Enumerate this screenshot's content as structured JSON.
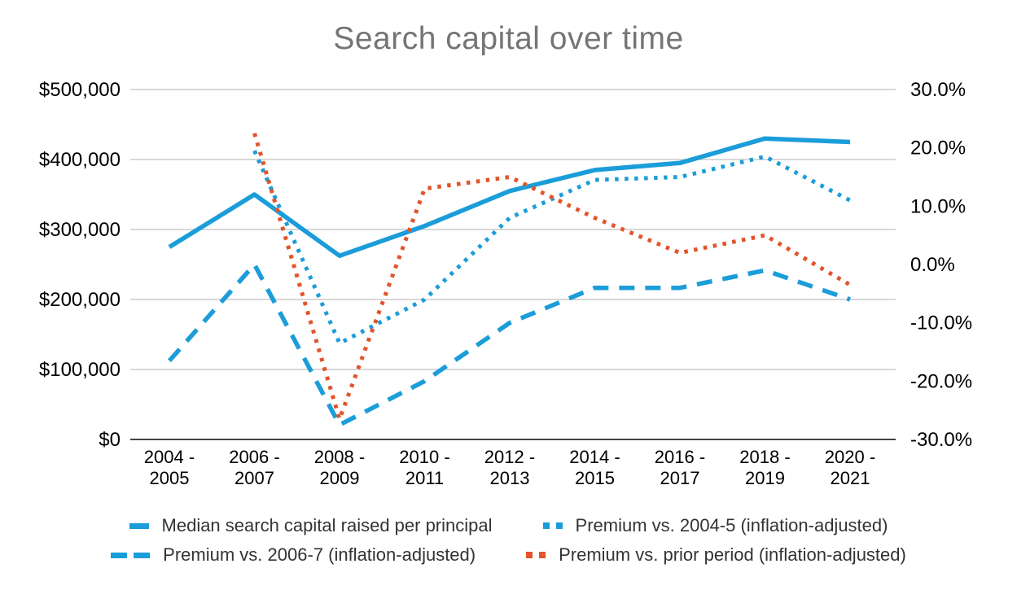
{
  "title": "Search capital over time",
  "chart_data": {
    "type": "line",
    "categories": [
      "2004 - 2005",
      "2006 - 2007",
      "2008 - 2009",
      "2010 - 2011",
      "2012 - 2013",
      "2014 - 2015",
      "2016 - 2017",
      "2018 - 2019",
      "2020 - 2021"
    ],
    "left_axis": {
      "unit": "USD",
      "min": 0,
      "max": 500000,
      "ticks": [
        "$500,000",
        "$400,000",
        "$300,000",
        "$200,000",
        "$100,000",
        "$0"
      ]
    },
    "right_axis": {
      "unit": "percent",
      "min": -30,
      "max": 30,
      "ticks": [
        "30.0%",
        "20.0%",
        "10.0%",
        "0.0%",
        "-10.0%",
        "-20.0%",
        "-30.0%"
      ]
    },
    "grid": true,
    "legend_position": "bottom",
    "series": [
      {
        "name": "Median search capital raised per principal",
        "axis": "left",
        "line_style": "solid",
        "color": "#1B9DD9",
        "values": [
          275000,
          350000,
          262500,
          305000,
          355000,
          385000,
          395000,
          430000,
          425000
        ]
      },
      {
        "name": "Premium vs. 2004-5 (inflation-adjusted)",
        "axis": "right",
        "line_style": "dotted",
        "color": "#1B9DD9",
        "values": [
          null,
          19.5,
          -13.5,
          -6,
          8,
          14.5,
          15,
          18.5,
          11
        ]
      },
      {
        "name": "Premium vs. 2006-7 (inflation-adjusted)",
        "axis": "right",
        "line_style": "dashed",
        "color": "#1B9DD9",
        "values": [
          -16.5,
          0,
          -27.5,
          -20,
          -10,
          -4,
          -4,
          -1,
          -6
        ]
      },
      {
        "name": "Premium vs. prior period (inflation-adjusted)",
        "axis": "right",
        "line_style": "dotted",
        "color": "#E2542B",
        "values": [
          null,
          22.5,
          -26.5,
          13,
          15,
          8,
          2,
          5,
          -3.5
        ]
      }
    ]
  },
  "colors": {
    "series_blue": "#1B9DD9",
    "series_orange": "#E2542B",
    "title_text": "#757575",
    "axis_text": "#000000",
    "gridline": "#CBCBCB",
    "axis_line": "#424242",
    "legend_text": "#333333"
  }
}
